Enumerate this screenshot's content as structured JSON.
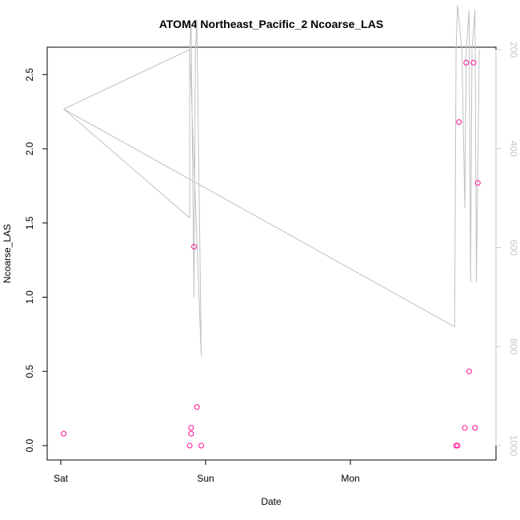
{
  "chart_data": {
    "type": "scatter",
    "title": "ATOM4 Northeast_Pacific_2 Ncoarse_LAS",
    "xlabel": "Date",
    "ylabel": "Ncoarse_LAS",
    "x_ticks": [
      "Sat",
      "Sun",
      "Mon"
    ],
    "y_ticks": [
      "0.0",
      "0.5",
      "1.0",
      "1.5",
      "2.0",
      "2.5"
    ],
    "ylim": [
      0,
      2.7
    ],
    "right_axis": {
      "label": "",
      "ticks": [
        "200",
        "400",
        "600",
        "800",
        "1000"
      ],
      "range_top_to_bottom": [
        200,
        1000
      ],
      "color": "#c8c8c8"
    },
    "xlim_days": [
      -0.02,
      3.0
    ],
    "series": [
      {
        "kind": "points",
        "color": "#ff1493",
        "points": [
          {
            "x": 0.02,
            "y": 0.08
          },
          {
            "x": 0.89,
            "y": 0.0
          },
          {
            "x": 0.9,
            "y": 0.08
          },
          {
            "x": 0.9,
            "y": 0.12
          },
          {
            "x": 0.92,
            "y": 1.34
          },
          {
            "x": 0.94,
            "y": 0.26
          },
          {
            "x": 0.97,
            "y": 0.0
          },
          {
            "x": 2.73,
            "y": 0.0
          },
          {
            "x": 2.74,
            "y": 0.0
          },
          {
            "x": 2.75,
            "y": 2.18
          },
          {
            "x": 2.79,
            "y": 0.12
          },
          {
            "x": 2.8,
            "y": 2.58
          },
          {
            "x": 2.82,
            "y": 0.5
          },
          {
            "x": 2.85,
            "y": 2.58
          },
          {
            "x": 2.86,
            "y": 0.12
          },
          {
            "x": 2.88,
            "y": 1.77
          }
        ]
      },
      {
        "kind": "line",
        "color": "#c0c0c0",
        "axis": "right",
        "points": [
          {
            "x": 0.02,
            "y": 320
          },
          {
            "x": 0.89,
            "y": 540
          },
          {
            "x": 0.89,
            "y": 200
          },
          {
            "x": 0.9,
            "y": 150
          },
          {
            "x": 0.92,
            "y": 700
          },
          {
            "x": 0.93,
            "y": 200
          },
          {
            "x": 0.94,
            "y": 140
          },
          {
            "x": 0.97,
            "y": 820
          },
          {
            "x": 0.89,
            "y": 200
          },
          {
            "x": 0.02,
            "y": 320
          },
          {
            "x": 2.72,
            "y": 760
          },
          {
            "x": 2.73,
            "y": 200
          },
          {
            "x": 2.74,
            "y": 110
          },
          {
            "x": 2.77,
            "y": 200
          },
          {
            "x": 2.79,
            "y": 520
          },
          {
            "x": 2.8,
            "y": 200
          },
          {
            "x": 2.82,
            "y": 120
          },
          {
            "x": 2.83,
            "y": 670
          },
          {
            "x": 2.84,
            "y": 200
          },
          {
            "x": 2.86,
            "y": 120
          },
          {
            "x": 2.87,
            "y": 670
          },
          {
            "x": 2.89,
            "y": 200
          }
        ]
      }
    ],
    "grid": false,
    "legend": "none"
  }
}
